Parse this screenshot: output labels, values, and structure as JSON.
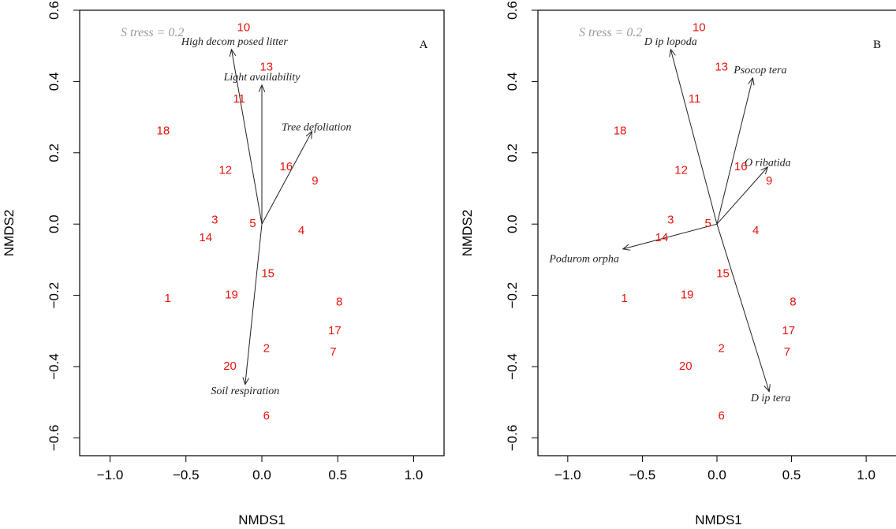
{
  "chart_data": [
    {
      "type": "scatter",
      "panel_label": "A",
      "annotation": "S tress = 0.2",
      "xlabel": "NMDS1",
      "ylabel": "NMDS2",
      "xlim": [
        -1.2,
        1.2
      ],
      "ylim": [
        -0.65,
        0.6
      ],
      "xticks": [
        -1.0,
        -0.5,
        0.0,
        0.5,
        1.0
      ],
      "xtick_labels": [
        "−1.0",
        "−0.5",
        "0.0",
        "0.5",
        "1.0"
      ],
      "yticks": [
        -0.6,
        -0.4,
        -0.2,
        0.0,
        0.2,
        0.4,
        0.6
      ],
      "ytick_labels": [
        "−0.6",
        "−0.4",
        "−0.2",
        "0.0",
        "0.2",
        "0.4",
        "0.6"
      ],
      "points": [
        {
          "label": "1",
          "x": -0.62,
          "y": -0.21
        },
        {
          "label": "2",
          "x": 0.03,
          "y": -0.35
        },
        {
          "label": "3",
          "x": -0.31,
          "y": 0.01
        },
        {
          "label": "4",
          "x": 0.26,
          "y": -0.02
        },
        {
          "label": "5",
          "x": -0.06,
          "y": -0.0
        },
        {
          "label": "6",
          "x": 0.03,
          "y": -0.54
        },
        {
          "label": "7",
          "x": 0.47,
          "y": -0.36
        },
        {
          "label": "8",
          "x": 0.51,
          "y": -0.22
        },
        {
          "label": "9",
          "x": 0.35,
          "y": 0.12
        },
        {
          "label": "10",
          "x": -0.12,
          "y": 0.55
        },
        {
          "label": "11",
          "x": -0.15,
          "y": 0.35
        },
        {
          "label": "12",
          "x": -0.24,
          "y": 0.15
        },
        {
          "label": "13",
          "x": 0.03,
          "y": 0.44
        },
        {
          "label": "14",
          "x": -0.37,
          "y": -0.04
        },
        {
          "label": "15",
          "x": 0.04,
          "y": -0.14
        },
        {
          "label": "16",
          "x": 0.16,
          "y": 0.16
        },
        {
          "label": "17",
          "x": 0.48,
          "y": -0.3
        },
        {
          "label": "18",
          "x": -0.65,
          "y": 0.26
        },
        {
          "label": "19",
          "x": -0.2,
          "y": -0.2
        },
        {
          "label": "20",
          "x": -0.21,
          "y": -0.4
        }
      ],
      "vectors": [
        {
          "label": "High decom posed litter",
          "x": -0.2,
          "y": 0.49,
          "label_x": -0.18,
          "label_y": 0.51
        },
        {
          "label": "Light availability",
          "x": 0.0,
          "y": 0.39,
          "label_x": 0.0,
          "label_y": 0.41
        },
        {
          "label": "Tree defoliation",
          "x": 0.33,
          "y": 0.26,
          "label_x": 0.36,
          "label_y": 0.27
        },
        {
          "label": "Soil respiration",
          "x": -0.11,
          "y": -0.45,
          "label_x": -0.11,
          "label_y": -0.47
        }
      ]
    },
    {
      "type": "scatter",
      "panel_label": "B",
      "annotation": "S tress = 0.2",
      "xlabel": "NMDS1",
      "ylabel": "NMDS2",
      "xlim": [
        -1.2,
        1.2
      ],
      "ylim": [
        -0.65,
        0.6
      ],
      "xticks": [
        -1.0,
        -0.5,
        0.0,
        0.5,
        1.0
      ],
      "xtick_labels": [
        "−1.0",
        "−0.5",
        "0.0",
        "0.5",
        "1.0"
      ],
      "yticks": [
        -0.6,
        -0.4,
        -0.2,
        0.0,
        0.2,
        0.4,
        0.6
      ],
      "ytick_labels": [
        "−0.6",
        "−0.4",
        "−0.2",
        "0.0",
        "0.2",
        "0.4",
        "0.6"
      ],
      "points": [
        {
          "label": "1",
          "x": -0.62,
          "y": -0.21
        },
        {
          "label": "2",
          "x": 0.03,
          "y": -0.35
        },
        {
          "label": "3",
          "x": -0.31,
          "y": 0.01
        },
        {
          "label": "4",
          "x": 0.26,
          "y": -0.02
        },
        {
          "label": "5",
          "x": -0.06,
          "y": -0.0
        },
        {
          "label": "6",
          "x": 0.03,
          "y": -0.54
        },
        {
          "label": "7",
          "x": 0.47,
          "y": -0.36
        },
        {
          "label": "8",
          "x": 0.51,
          "y": -0.22
        },
        {
          "label": "9",
          "x": 0.35,
          "y": 0.12
        },
        {
          "label": "10",
          "x": -0.12,
          "y": 0.55
        },
        {
          "label": "11",
          "x": -0.15,
          "y": 0.35
        },
        {
          "label": "12",
          "x": -0.24,
          "y": 0.15
        },
        {
          "label": "13",
          "x": 0.03,
          "y": 0.44
        },
        {
          "label": "14",
          "x": -0.37,
          "y": -0.04
        },
        {
          "label": "15",
          "x": 0.04,
          "y": -0.14
        },
        {
          "label": "16",
          "x": 0.16,
          "y": 0.16
        },
        {
          "label": "17",
          "x": 0.48,
          "y": -0.3
        },
        {
          "label": "18",
          "x": -0.65,
          "y": 0.26
        },
        {
          "label": "19",
          "x": -0.2,
          "y": -0.2
        },
        {
          "label": "20",
          "x": -0.21,
          "y": -0.4
        }
      ],
      "vectors": [
        {
          "label": "D ip lopoda",
          "x": -0.31,
          "y": 0.49,
          "label_x": -0.31,
          "label_y": 0.51
        },
        {
          "label": "Psocop tera",
          "x": 0.24,
          "y": 0.41,
          "label_x": 0.29,
          "label_y": 0.43
        },
        {
          "label": "O ribatida",
          "x": 0.34,
          "y": 0.16,
          "label_x": 0.34,
          "label_y": 0.17
        },
        {
          "label": "Podurom orpha",
          "x": -0.63,
          "y": -0.07,
          "label_x": -0.89,
          "label_y": -0.1
        },
        {
          "label": "D ip tera",
          "x": 0.35,
          "y": -0.47,
          "label_x": 0.36,
          "label_y": -0.49
        }
      ]
    }
  ]
}
